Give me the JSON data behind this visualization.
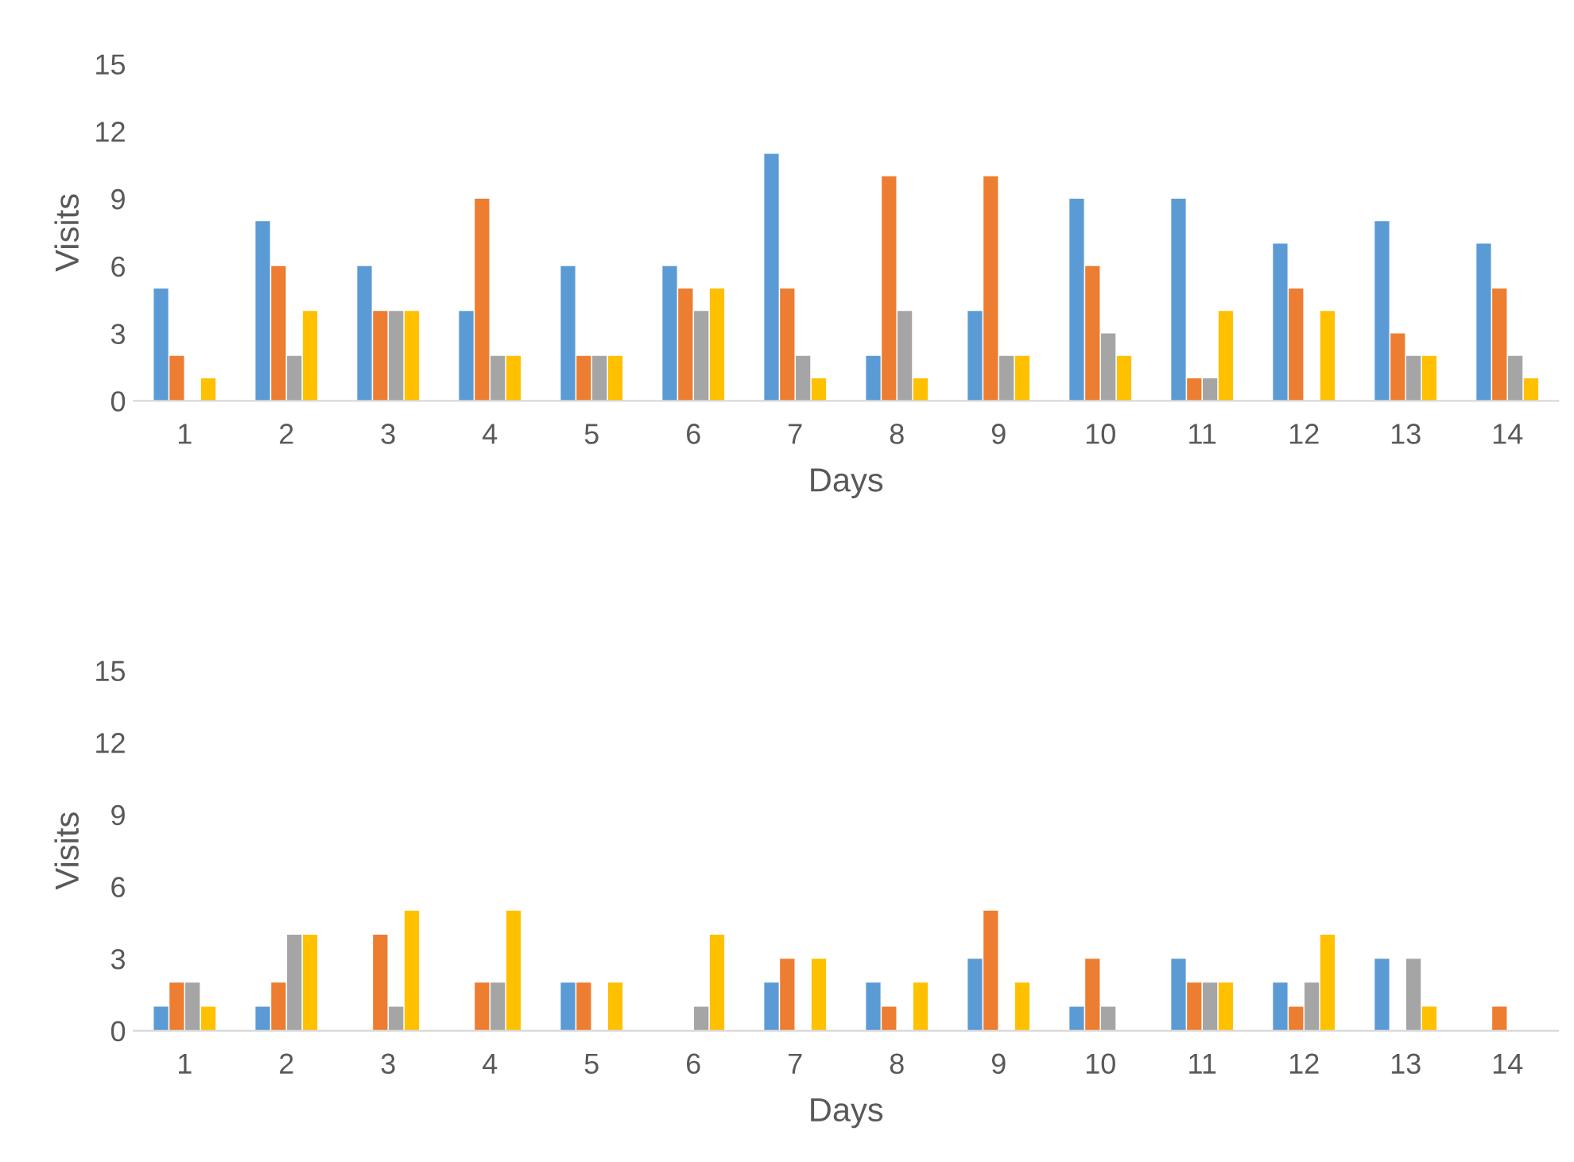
{
  "chart_data": [
    {
      "type": "bar",
      "xlabel": "Days",
      "ylabel": "Visits",
      "categories": [
        "1",
        "2",
        "3",
        "4",
        "5",
        "6",
        "7",
        "8",
        "9",
        "10",
        "11",
        "12",
        "13",
        "14"
      ],
      "ylim": [
        0,
        15
      ],
      "yticks": [
        0,
        3,
        6,
        9,
        12,
        15
      ],
      "grid": false,
      "legend": false,
      "series": [
        {
          "color": "#5b9bd5",
          "values": [
            5,
            8,
            6,
            4,
            6,
            6,
            11,
            2,
            4,
            9,
            9,
            7,
            8,
            7
          ]
        },
        {
          "color": "#ed7d31",
          "values": [
            2,
            6,
            4,
            9,
            2,
            5,
            5,
            10,
            10,
            6,
            1,
            5,
            3,
            5
          ]
        },
        {
          "color": "#a5a5a5",
          "values": [
            0,
            2,
            4,
            2,
            2,
            4,
            2,
            4,
            2,
            3,
            1,
            0,
            2,
            2
          ]
        },
        {
          "color": "#ffc000",
          "values": [
            1,
            4,
            4,
            2,
            2,
            5,
            1,
            1,
            2,
            2,
            4,
            4,
            2,
            1
          ]
        }
      ]
    },
    {
      "type": "bar",
      "xlabel": "Days",
      "ylabel": "Visits",
      "categories": [
        "1",
        "2",
        "3",
        "4",
        "5",
        "6",
        "7",
        "8",
        "9",
        "10",
        "11",
        "12",
        "13",
        "14"
      ],
      "ylim": [
        0,
        15
      ],
      "yticks": [
        0,
        3,
        6,
        9,
        12,
        15
      ],
      "grid": false,
      "legend": false,
      "series": [
        {
          "color": "#5b9bd5",
          "values": [
            1,
            1,
            0,
            0,
            2,
            0,
            2,
            2,
            3,
            1,
            3,
            2,
            3,
            0
          ]
        },
        {
          "color": "#ed7d31",
          "values": [
            2,
            2,
            4,
            2,
            2,
            0,
            3,
            1,
            5,
            3,
            2,
            1,
            0,
            1
          ]
        },
        {
          "color": "#a5a5a5",
          "values": [
            2,
            4,
            1,
            2,
            0,
            1,
            0,
            0,
            0,
            1,
            2,
            2,
            3,
            0
          ]
        },
        {
          "color": "#ffc000",
          "values": [
            1,
            4,
            5,
            5,
            2,
            4,
            3,
            2,
            2,
            0,
            2,
            4,
            1,
            0
          ]
        }
      ]
    }
  ]
}
